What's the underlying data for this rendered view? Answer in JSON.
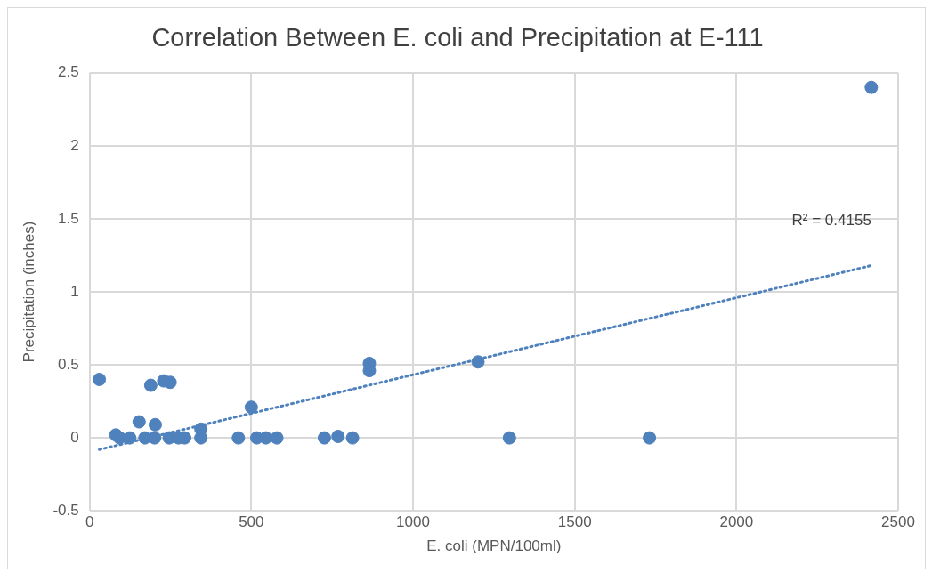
{
  "chart_data": {
    "type": "scatter",
    "title": "Correlation Between E. coli and Precipitation at E-111",
    "xlabel": "E. coli (MPN/100ml)",
    "ylabel": "Precipitation (inches)",
    "xlim": [
      0,
      2500
    ],
    "xticks": [
      0,
      500,
      1000,
      1500,
      2000,
      2500
    ],
    "ylim": [
      -0.5,
      2.5
    ],
    "yticks": [
      -0.5,
      0,
      0.5,
      1,
      1.5,
      2,
      2.5
    ],
    "grid": true,
    "legend": false,
    "marker": "circle",
    "series": [
      {
        "color": "#4f81bd",
        "x": [
          30,
          81,
          93,
          124,
          153,
          189,
          203,
          171,
          201,
          229,
          249,
          246,
          275,
          294,
          344,
          344,
          460,
          500,
          517,
          545,
          579,
          726,
          768,
          813,
          865,
          865,
          1201,
          1298,
          1731,
          2417
        ],
        "values": [
          0.4,
          0.02,
          0,
          0,
          0.11,
          0.36,
          0.09,
          0,
          0,
          0.39,
          0.38,
          0,
          0,
          0,
          0.06,
          0,
          0,
          0.21,
          0,
          0,
          0,
          0,
          0.01,
          0,
          0.51,
          0.46,
          0.52,
          0,
          0,
          2.4
        ]
      },
      {
        "type": "line",
        "color": "#4f81bd",
        "line_style": "dotted",
        "marker": "none",
        "x": [
          30,
          2417
        ],
        "values": [
          -0.08,
          1.18
        ]
      }
    ],
    "annotations": [
      "R² = 0.4155"
    ]
  }
}
